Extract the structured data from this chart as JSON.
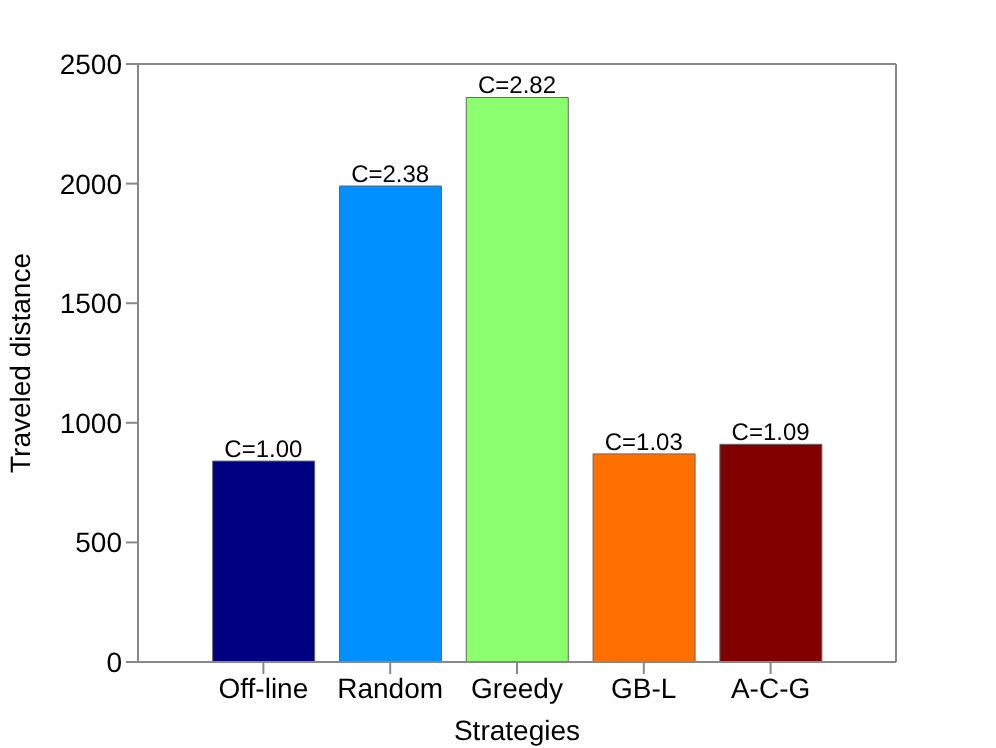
{
  "chart_data": {
    "type": "bar",
    "xlabel": "Strategies",
    "ylabel": "Traveled distance",
    "categories": [
      "Off-line",
      "Random",
      "Greedy",
      "GB-L",
      "A-C-G"
    ],
    "values": [
      840,
      1990,
      2360,
      870,
      910
    ],
    "colors": [
      "#000080",
      "#0090ff",
      "#8cff6e",
      "#ff7000",
      "#800000"
    ],
    "annotations": [
      {
        "text": "C=1.00",
        "x": "Off-line",
        "y": 840
      },
      {
        "text": "C=2.38",
        "x": "Random",
        "y": 1990
      },
      {
        "text": "C=2.82",
        "x": "Greedy",
        "y": 2360
      },
      {
        "text": "C=1.03",
        "x": "GB-L",
        "y": 870
      },
      {
        "text": "C=1.09",
        "x": "A-C-G",
        "y": 910
      }
    ],
    "ylim": [
      0,
      2500
    ],
    "yticks": [
      0,
      500,
      1000,
      1500,
      2000,
      2500
    ],
    "grid": false
  }
}
